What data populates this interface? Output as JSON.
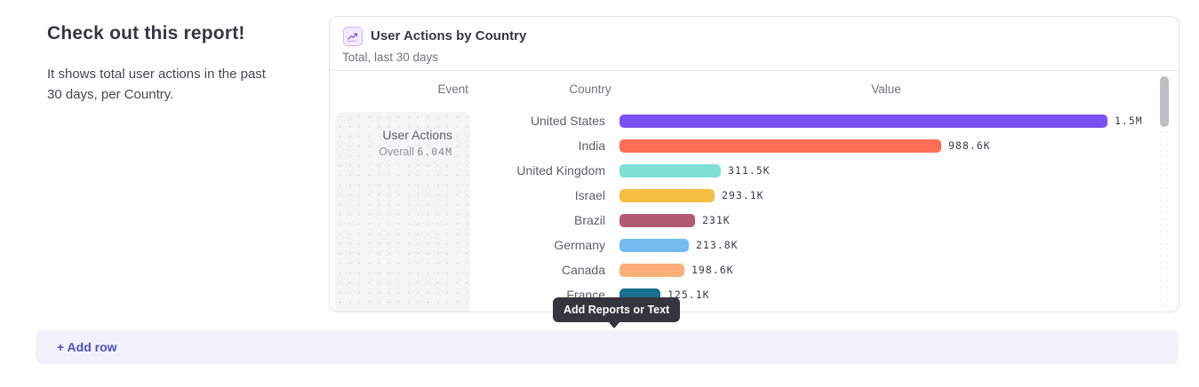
{
  "page": {
    "heading": "Check out this report!",
    "description": "It shows total user actions in the past 30 days, per Country."
  },
  "report_card": {
    "icon": "line-chart-icon",
    "title": "User Actions by Country",
    "subtitle": "Total, last 30 days",
    "columns": {
      "event": "Event",
      "country": "Country",
      "value": "Value"
    },
    "event_cell": {
      "name": "User Actions",
      "overall_label": "Overall",
      "overall_value": "6.04M"
    }
  },
  "chart_data": {
    "type": "bar",
    "orientation": "horizontal",
    "title": "User Actions by Country",
    "series_name": "User Actions",
    "categories": [
      "United States",
      "India",
      "United Kingdom",
      "Israel",
      "Brazil",
      "Germany",
      "Canada",
      "France"
    ],
    "values": [
      1500000,
      988600,
      311500,
      293100,
      231000,
      213800,
      198600,
      125100
    ],
    "value_labels": [
      "1.5M",
      "988.6K",
      "311.5K",
      "293.1K",
      "231K",
      "213.8K",
      "198.6K",
      "125.1K"
    ],
    "bar_colors": [
      "#7a52f4",
      "#fc6e56",
      "#7fe0d4",
      "#f5be41",
      "#b25a71",
      "#72bcef",
      "#fbb077",
      "#19708f"
    ],
    "axis_max": 1500000,
    "overall_total": "6.04M",
    "period": "last 30 days",
    "legend": "none",
    "grid": "off"
  },
  "tooltip": {
    "label": "Add Reports or Text"
  },
  "add_row": {
    "label": "+ Add row"
  },
  "colors": {
    "accent_purple": "#7a52f4",
    "tooltip_bg": "#33363d",
    "add_row_bg": "#f3f2fb",
    "add_row_text": "#4b50c6",
    "card_border": "#e3e4e6"
  }
}
